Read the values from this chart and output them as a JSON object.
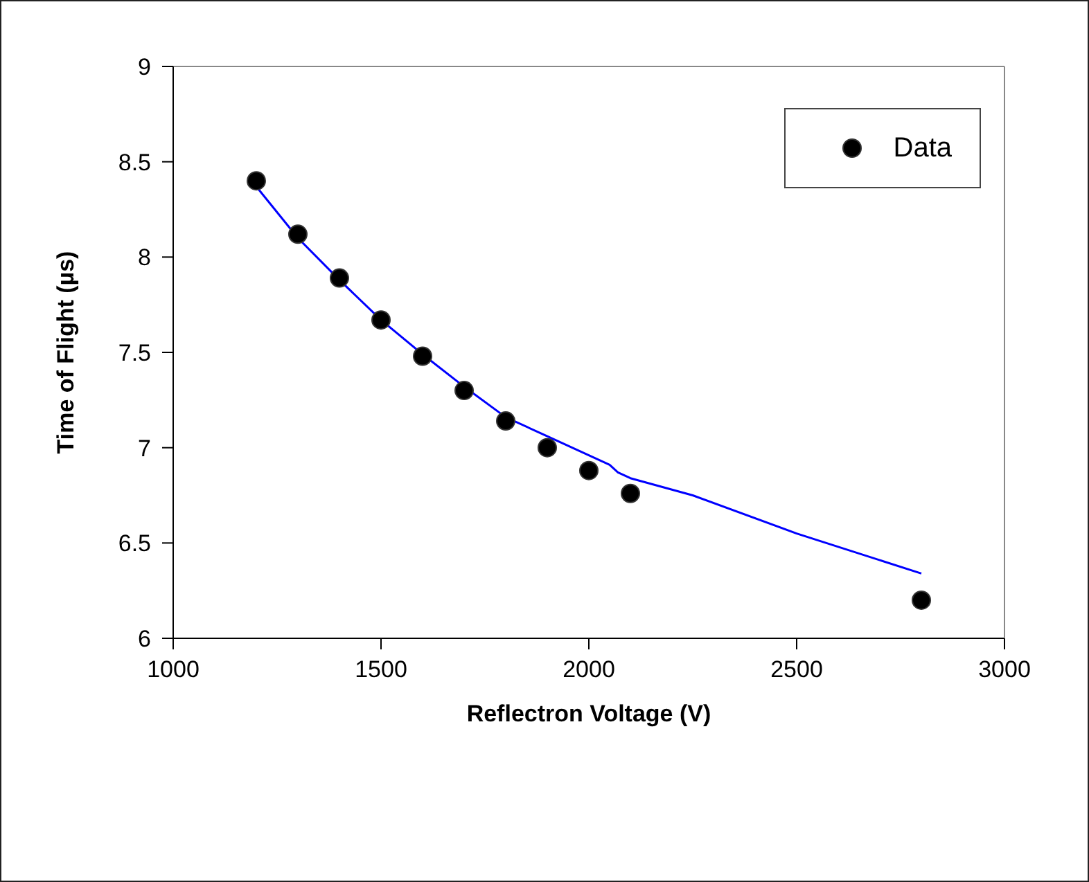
{
  "chart_data": {
    "type": "scatter",
    "xlabel": "Reflectron Voltage (V)",
    "ylabel": "Time of Flight (µs)",
    "xlim": [
      1000,
      3000
    ],
    "xticks": [
      1000,
      1500,
      2000,
      2500,
      3000
    ],
    "ylim": [
      6,
      9
    ],
    "yticks": [
      6,
      6.5,
      7,
      7.5,
      8,
      8.5,
      9
    ],
    "legend": "top right",
    "series": [
      {
        "name": "Data",
        "marker": "circle",
        "color": "#000000",
        "x": [
          1200,
          1300,
          1400,
          1500,
          1600,
          1700,
          1800,
          1900,
          2000,
          2100,
          2800
        ],
        "values": [
          8.4,
          8.12,
          7.89,
          7.67,
          7.48,
          7.3,
          7.14,
          7.0,
          6.88,
          6.76,
          6.2
        ]
      },
      {
        "type": "line",
        "color": "#0000ff",
        "line_style": "solid",
        "x": [
          1200,
          1300,
          1400,
          1500,
          1600,
          1700,
          1800,
          1900,
          2000,
          2050,
          2070,
          2100,
          2150,
          2250,
          2500,
          2800
        ],
        "values": [
          8.37,
          8.1,
          7.88,
          7.67,
          7.49,
          7.32,
          7.16,
          7.06,
          6.96,
          6.91,
          6.87,
          6.84,
          6.81,
          6.75,
          6.55,
          6.34
        ]
      }
    ]
  }
}
